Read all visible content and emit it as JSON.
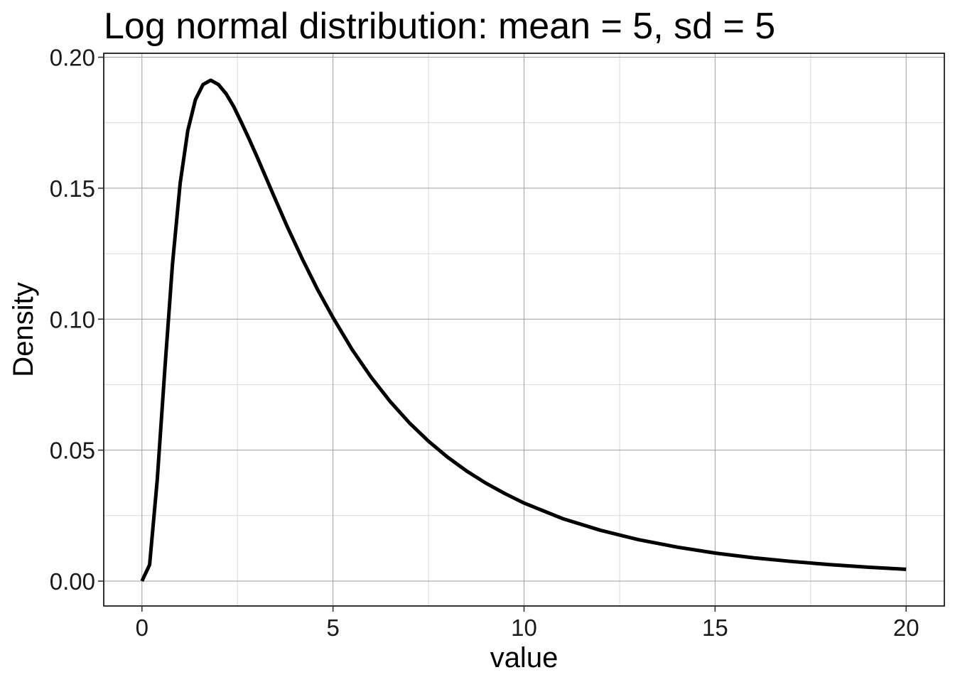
{
  "chart_data": {
    "type": "line",
    "title": "Log normal distribution: mean = 5, sd = 5",
    "xlabel": "value",
    "ylabel": "Density",
    "xlim": [
      -1,
      21
    ],
    "ylim": [
      -0.0095,
      0.2015
    ],
    "x_ticks": [
      0,
      5,
      10,
      15,
      20
    ],
    "x_tick_labels": [
      "0",
      "5",
      "10",
      "15",
      "20"
    ],
    "x_minor": [
      2.5,
      7.5,
      12.5,
      17.5
    ],
    "y_ticks": [
      0,
      0.05,
      0.1,
      0.15,
      0.2
    ],
    "y_tick_labels": [
      "0.00",
      "0.05",
      "0.10",
      "0.15",
      "0.20"
    ],
    "y_minor": [
      0.025,
      0.075,
      0.125,
      0.175
    ],
    "grid": true,
    "legend": "none",
    "colors": {
      "line": "#000000",
      "major_grid": "#9e9e9e",
      "minor_grid": "#d9d9d9",
      "panel_border": "#000000"
    },
    "series": [
      {
        "x": [
          0,
          0.2,
          0.4,
          0.6,
          0.8,
          1.0,
          1.2,
          1.4,
          1.6,
          1.8,
          2.0,
          2.2,
          2.4,
          2.6,
          2.8,
          3.0,
          3.4,
          3.8,
          4.2,
          4.6,
          5.0,
          5.5,
          6.0,
          6.5,
          7.0,
          7.5,
          8.0,
          8.5,
          9.0,
          9.5,
          10.0,
          11.0,
          12.0,
          13.0,
          14.0,
          15.0,
          16.0,
          17.0,
          18.0,
          19.0,
          20.0
        ],
        "y": [
          0.0,
          0.0062,
          0.0386,
          0.0811,
          0.1212,
          0.1519,
          0.172,
          0.1838,
          0.1896,
          0.1912,
          0.1896,
          0.1861,
          0.1812,
          0.1752,
          0.1689,
          0.1624,
          0.1488,
          0.1354,
          0.1229,
          0.1112,
          0.1006,
          0.0884,
          0.0778,
          0.0685,
          0.0604,
          0.0534,
          0.0473,
          0.042,
          0.0374,
          0.0334,
          0.0298,
          0.0239,
          0.0194,
          0.0158,
          0.013,
          0.0107,
          0.0089,
          0.0075,
          0.0063,
          0.0053,
          0.0045
        ]
      }
    ]
  }
}
